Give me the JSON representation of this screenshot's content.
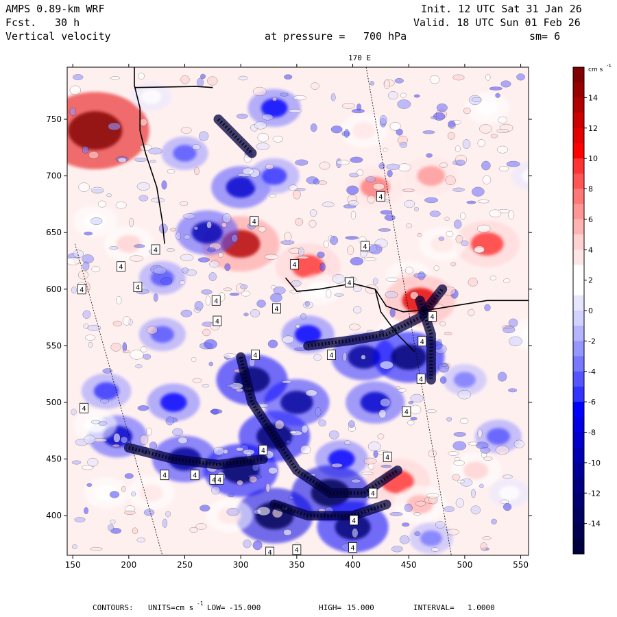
{
  "header": {
    "model": "AMPS 0.89-km WRF",
    "forecast_label": "Fcst.",
    "forecast_hours": "30 h",
    "field": "Vertical velocity",
    "init": "Init. 12 UTC Sat 31 Jan 26",
    "valid": "Valid. 18 UTC Sun 01 Feb 26",
    "pressure_label": "at pressure =",
    "pressure_value": "700 hPa",
    "smoothing": "sm= 6"
  },
  "map_annotations": {
    "meridian_label": "170 E",
    "contour_label": "4"
  },
  "footer": {
    "contours_label": "CONTOURS:",
    "units_label": "UNITS=cm s",
    "low_label": "LOW=",
    "low_value": "-15.000",
    "high_label": "HIGH=",
    "high_value": "15.000",
    "interval_label": "INTERVAL=",
    "interval_value": "1.0000"
  },
  "colorbar": {
    "unit": "cm s",
    "unit_exp": "-1",
    "min": -16,
    "max": 16,
    "tick_values": [
      14,
      12,
      10,
      8,
      6,
      4,
      2,
      0,
      -2,
      -4,
      -6,
      -8,
      -10,
      -12,
      -14
    ],
    "tick_labels": [
      "14",
      "12",
      "10",
      "8",
      "6",
      "4",
      "2",
      "0",
      "-2",
      "-4",
      "-6",
      "-8",
      "-10",
      "-12",
      "-14"
    ],
    "colors_high_to_low": [
      "#800000",
      "#990000",
      "#b20000",
      "#cc0000",
      "#e50000",
      "#ff0000",
      "#ff3333",
      "#ff5555",
      "#ff7878",
      "#ff9696",
      "#ffb4b4",
      "#ffd2d2",
      "#ffe6e6",
      "#ffffff",
      "#ffffff",
      "#e6e6ff",
      "#d2d2ff",
      "#b4b4ff",
      "#9696ff",
      "#7878ff",
      "#5555ff",
      "#3333ff",
      "#0000ff",
      "#0000e5",
      "#0000cc",
      "#0000b2",
      "#000099",
      "#000080",
      "#000070",
      "#000060",
      "#000050",
      "#000040"
    ]
  },
  "chart_data": {
    "type": "heatmap",
    "title": "Vertical velocity at pressure = 700 hPa",
    "x_ticks": [
      150,
      200,
      250,
      300,
      350,
      400,
      450,
      500,
      550
    ],
    "y_ticks": [
      400,
      450,
      500,
      550,
      600,
      650,
      700,
      750
    ],
    "xlim": [
      145,
      557
    ],
    "ylim": [
      365,
      796
    ],
    "units": "cm s-1",
    "range": [
      -15,
      15
    ],
    "interval": 1.0,
    "contour_labels": [
      {
        "x": 158,
        "y": 600,
        "text": "4"
      },
      {
        "x": 312,
        "y": 660,
        "text": "4"
      },
      {
        "x": 348,
        "y": 622,
        "text": "4"
      },
      {
        "x": 397,
        "y": 606,
        "text": "4"
      },
      {
        "x": 425,
        "y": 682,
        "text": "4"
      },
      {
        "x": 411,
        "y": 638,
        "text": "4"
      },
      {
        "x": 279,
        "y": 572,
        "text": "4"
      },
      {
        "x": 471,
        "y": 576,
        "text": "4"
      },
      {
        "x": 462,
        "y": 554,
        "text": "4"
      },
      {
        "x": 461,
        "y": 521,
        "text": "4"
      },
      {
        "x": 448,
        "y": 492,
        "text": "4"
      },
      {
        "x": 431,
        "y": 452,
        "text": "4"
      },
      {
        "x": 418,
        "y": 420,
        "text": "4"
      },
      {
        "x": 320,
        "y": 458,
        "text": "4"
      },
      {
        "x": 276,
        "y": 432,
        "text": "4"
      },
      {
        "x": 160,
        "y": 495,
        "text": "4"
      },
      {
        "x": 232,
        "y": 436,
        "text": "4"
      },
      {
        "x": 259,
        "y": 436,
        "text": "4"
      },
      {
        "x": 281,
        "y": 432,
        "text": "4"
      },
      {
        "x": 401,
        "y": 396,
        "text": "4"
      },
      {
        "x": 326,
        "y": 368,
        "text": "4"
      },
      {
        "x": 350,
        "y": 370,
        "text": "4"
      },
      {
        "x": 400,
        "y": 372,
        "text": "4"
      },
      {
        "x": 193,
        "y": 620,
        "text": "4"
      },
      {
        "x": 224,
        "y": 635,
        "text": "4"
      },
      {
        "x": 208,
        "y": 602,
        "text": "4"
      },
      {
        "x": 332,
        "y": 583,
        "text": "4"
      },
      {
        "x": 278,
        "y": 590,
        "text": "4"
      },
      {
        "x": 381,
        "y": 542,
        "text": "4"
      },
      {
        "x": 313,
        "y": 542,
        "text": "4"
      }
    ]
  }
}
